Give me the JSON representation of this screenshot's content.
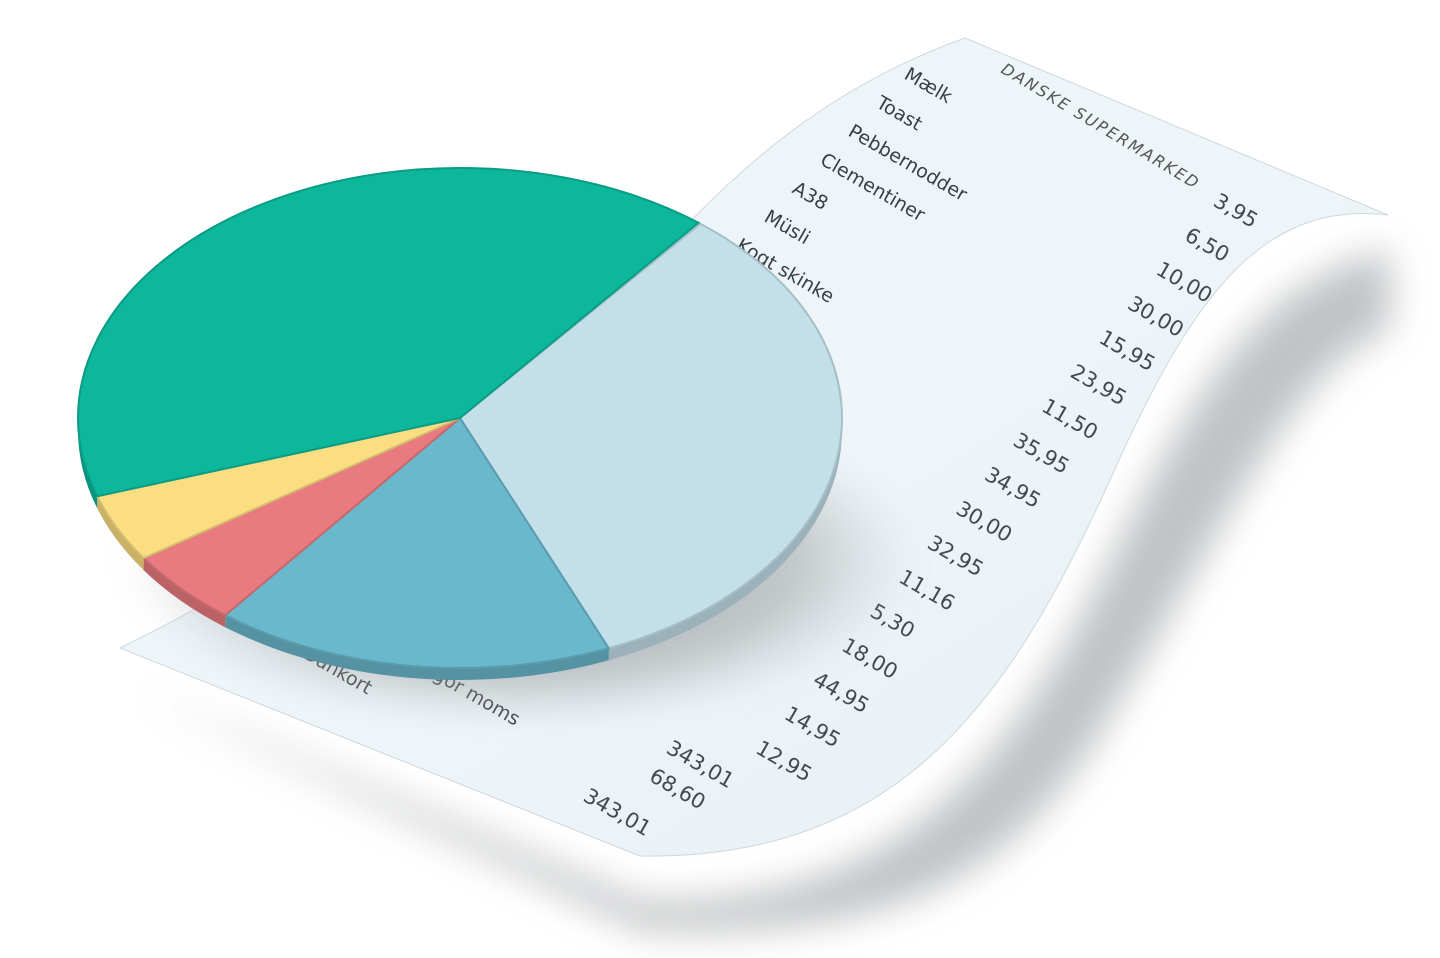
{
  "receipt": {
    "store_name": "DANSKE SUPERMARKED",
    "items": [
      "Mælk",
      "Toast",
      "Pebbernodder",
      "Clementiner",
      "A38",
      "Müsli",
      "Kogt skinke"
    ],
    "prices": [
      "3,95",
      "6,50",
      "10,00",
      "30,00",
      "15,95",
      "23,95",
      "11,50",
      "35,95",
      "34,95",
      "30,00",
      "32,95",
      "11,16",
      "5,30",
      "18,00",
      "44,95",
      "14,95",
      "12,95"
    ],
    "footer_labels": [
      "Dankort",
      "gor moms"
    ],
    "totals": [
      "343,01",
      "68,60",
      "343,01"
    ],
    "paper_color": "#eef5f9"
  },
  "chart_data": {
    "type": "pie",
    "style": "3d",
    "values": [
      0.328,
      0.169,
      0.05,
      0.044,
      0.408
    ],
    "colors": [
      "#c3dfe9",
      "#6ab8cc",
      "#e97a7f",
      "#fbde82",
      "#0cb79b"
    ],
    "start_angle_deg": -51
  }
}
